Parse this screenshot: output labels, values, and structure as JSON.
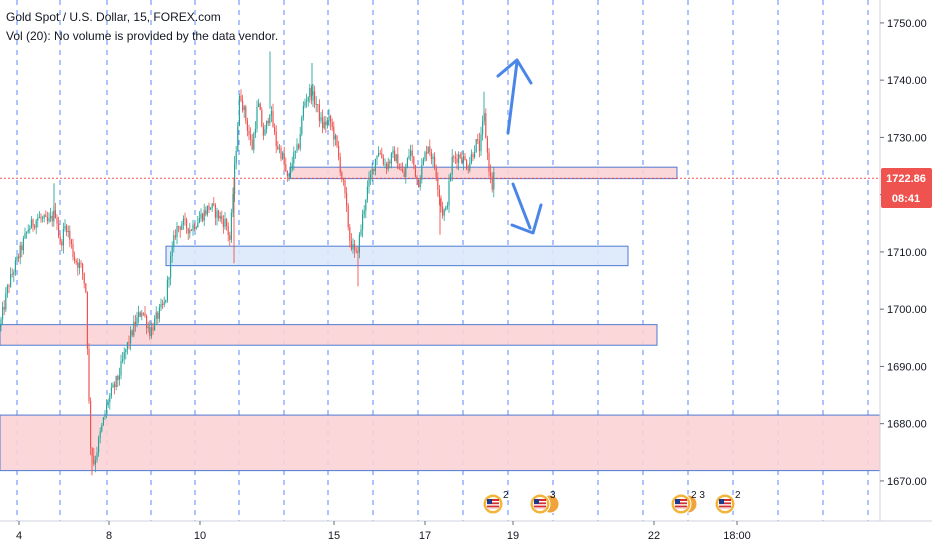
{
  "header": {
    "symbol_line": "Gold Spot / U.S. Dollar, 15, FOREX.com",
    "volume_line": "Vol (20): No volume is provided by the data vendor."
  },
  "price_badge": {
    "price": "1722.86",
    "countdown": "08:41",
    "color": "#ef5350"
  },
  "colors": {
    "bull": "#26a69a",
    "bear": "#ef5350",
    "zone_support_fill": "#dce8fa",
    "zone_support_border": "#4f7ad3",
    "zone_resist_fill": "#fbd3d6",
    "zone_resist_border": "#4f7ad3",
    "arrow": "#4a86e8",
    "grid_dash": "#2962ff"
  },
  "chart_data": {
    "type": "candlestick",
    "y_axis": {
      "min": 1663,
      "max": 1754,
      "ticks": [
        1670,
        1680,
        1690,
        1700,
        1710,
        1720,
        1730,
        1740,
        1750
      ],
      "tick_labels": [
        "1670.00",
        "1680.00",
        "1690.00",
        "1700.00",
        "1710.00",
        "1720.00",
        "1730.00",
        "1740.00",
        "1750.00"
      ]
    },
    "x_axis": {
      "tick_labels": [
        "4",
        "8",
        "10",
        "15",
        "17",
        "19",
        "22",
        "18:00"
      ]
    },
    "current_price": 1722.86,
    "anchors": [
      [
        0,
        1697
      ],
      [
        8,
        1704
      ],
      [
        18,
        1709
      ],
      [
        28,
        1714
      ],
      [
        38,
        1716
      ],
      [
        48,
        1715
      ],
      [
        56,
        1717
      ],
      [
        60,
        1711
      ],
      [
        66,
        1715
      ],
      [
        74,
        1709
      ],
      [
        82,
        1707
      ],
      [
        86,
        1703
      ],
      [
        90,
        1677
      ],
      [
        94,
        1673
      ],
      [
        100,
        1678
      ],
      [
        108,
        1684
      ],
      [
        118,
        1688
      ],
      [
        126,
        1693
      ],
      [
        134,
        1697
      ],
      [
        142,
        1700
      ],
      [
        150,
        1696
      ],
      [
        158,
        1699
      ],
      [
        165,
        1701
      ],
      [
        170,
        1708
      ],
      [
        176,
        1714
      ],
      [
        182,
        1715
      ],
      [
        190,
        1714
      ],
      [
        200,
        1716
      ],
      [
        210,
        1718
      ],
      [
        220,
        1716
      ],
      [
        226,
        1715
      ],
      [
        230,
        1712
      ],
      [
        234,
        1723
      ],
      [
        240,
        1738
      ],
      [
        246,
        1733
      ],
      [
        252,
        1728
      ],
      [
        258,
        1736
      ],
      [
        264,
        1730
      ],
      [
        270,
        1735
      ],
      [
        276,
        1729
      ],
      [
        282,
        1727
      ],
      [
        288,
        1722
      ],
      [
        292,
        1726
      ],
      [
        298,
        1728
      ],
      [
        304,
        1736
      ],
      [
        310,
        1738
      ],
      [
        316,
        1736
      ],
      [
        322,
        1732
      ],
      [
        330,
        1733
      ],
      [
        336,
        1729
      ],
      [
        344,
        1721
      ],
      [
        350,
        1712
      ],
      [
        356,
        1709
      ],
      [
        360,
        1713
      ],
      [
        366,
        1720
      ],
      [
        372,
        1724
      ],
      [
        378,
        1728
      ],
      [
        386,
        1725
      ],
      [
        394,
        1727
      ],
      [
        404,
        1723
      ],
      [
        410,
        1728
      ],
      [
        418,
        1722
      ],
      [
        428,
        1729
      ],
      [
        436,
        1724
      ],
      [
        442,
        1717
      ],
      [
        446,
        1717
      ],
      [
        452,
        1726
      ],
      [
        460,
        1727
      ],
      [
        468,
        1725
      ],
      [
        476,
        1729
      ],
      [
        480,
        1728
      ],
      [
        484,
        1734
      ],
      [
        488,
        1726
      ],
      [
        492,
        1721
      ],
      [
        494,
        1724
      ]
    ],
    "zones": [
      {
        "kind": "resistance",
        "x1": 290,
        "x2": 677,
        "y_top": 1724.8,
        "y_bottom": 1722.8
      },
      {
        "kind": "support",
        "x1": 166,
        "x2": 628,
        "y_top": 1711.0,
        "y_bottom": 1707.6
      },
      {
        "kind": "resistance",
        "x1": 0,
        "x2": 657,
        "y_top": 1697.3,
        "y_bottom": 1693.7
      },
      {
        "kind": "resistance",
        "x1": 0,
        "x2": 880,
        "y_top": 1681.5,
        "y_bottom": 1671.8
      }
    ],
    "arrows": [
      {
        "direction": "up"
      },
      {
        "direction": "down"
      }
    ],
    "event_markers": [
      {
        "count": "2"
      },
      {
        "count": "3"
      },
      {
        "count": "2 3"
      },
      {
        "count": "2"
      }
    ]
  }
}
